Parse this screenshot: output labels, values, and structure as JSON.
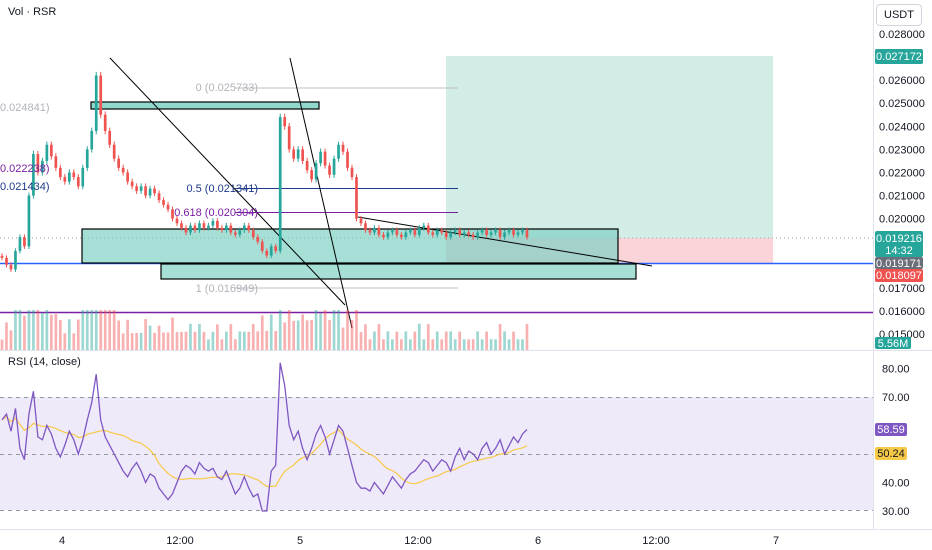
{
  "header": {
    "vol_label": "Vol · RSR",
    "currency": "USDT",
    "rsi_label": "RSI (14, close)"
  },
  "price_axis": {
    "ticks": [
      "0.028000",
      "0.026000",
      "0.025000",
      "0.024000",
      "0.023000",
      "0.022000",
      "0.021000",
      "0.020000",
      "0.017000",
      "0.016000",
      "0.015000"
    ],
    "tick_values": [
      0.028,
      0.026,
      0.025,
      0.024,
      0.023,
      0.022,
      0.021,
      0.02,
      0.017,
      0.016,
      0.015
    ]
  },
  "price_tags": {
    "target": "0.027172",
    "current": "0.019216",
    "countdown": "14:32",
    "level1": "0.019171",
    "stop": "0.018097",
    "volume": "5.56M"
  },
  "rsi_axis": {
    "ticks": [
      "80.00",
      "70.00",
      "40.00",
      "30.00"
    ],
    "tick_values": [
      80,
      70,
      40,
      30
    ],
    "rsi_value": "58.59",
    "ma_value": "50.24"
  },
  "time_axis": {
    "labels": [
      "4",
      "12:00",
      "5",
      "12:00",
      "6",
      "12:00",
      "7"
    ]
  },
  "annotations": {
    "left_level_1": "0.024841)",
    "left_level_2": "0.022238)",
    "left_level_3": "0.021434)",
    "fib_0": "0 (0.025733)",
    "fib_05": "0.5 (0.021341)",
    "fib_0618": "0.618 (0.020304)",
    "fib_1": "1 (0.016949)"
  },
  "colors": {
    "up": "#26a69a",
    "down": "#ef5350",
    "zone_fill": "#7fd1c4",
    "profit_fill": "#d2ede6",
    "loss_fill": "#fad4d8",
    "blue_line": "#2962ff",
    "purple_line": "#7b1fa2",
    "rsi_line": "#7e57c2",
    "rsi_ma": "#f7c948",
    "rsi_band": "#efeafa"
  },
  "chart_data": {
    "type": "candlestick",
    "symbol": "RSR",
    "quote": "USDT",
    "y_range": [
      0.0145,
      0.0285
    ],
    "close_path": [
      0.0183,
      0.018,
      0.0178,
      0.0186,
      0.0192,
      0.0188,
      0.021,
      0.0228,
      0.022,
      0.0225,
      0.0232,
      0.0227,
      0.0222,
      0.0218,
      0.0216,
      0.022,
      0.0218,
      0.0214,
      0.0222,
      0.023,
      0.0238,
      0.0262,
      0.0245,
      0.0238,
      0.0232,
      0.0226,
      0.0222,
      0.022,
      0.0216,
      0.0214,
      0.0212,
      0.0214,
      0.021,
      0.0213,
      0.0211,
      0.0208,
      0.0206,
      0.0204,
      0.02,
      0.0198,
      0.0196,
      0.0194,
      0.0197,
      0.0195,
      0.0198,
      0.0196,
      0.0197,
      0.0199,
      0.0196,
      0.0195,
      0.0197,
      0.0194,
      0.0193,
      0.0195,
      0.0197,
      0.0195,
      0.0192,
      0.019,
      0.0186,
      0.0184,
      0.0188,
      0.0186,
      0.0244,
      0.024,
      0.023,
      0.0226,
      0.023,
      0.0225,
      0.0221,
      0.0217,
      0.0224,
      0.0229,
      0.0223,
      0.0219,
      0.0226,
      0.0232,
      0.0229,
      0.0222,
      0.0218,
      0.02,
      0.0198,
      0.0195,
      0.0194,
      0.0196,
      0.0193,
      0.0192,
      0.0194,
      0.0195,
      0.0193,
      0.0192,
      0.0194,
      0.0195,
      0.0193,
      0.0196,
      0.0197,
      0.0194,
      0.0193,
      0.0195,
      0.0194,
      0.0192,
      0.0194,
      0.0195,
      0.0193,
      0.0194,
      0.0193,
      0.0192,
      0.0194,
      0.0195,
      0.0193,
      0.0194,
      0.0195,
      0.0192,
      0.0194,
      0.0195,
      0.0193,
      0.0194,
      0.0195,
      0.0192
    ],
    "levels": {
      "target": 0.027172,
      "entry": 0.019216,
      "support": 0.019171,
      "stop": 0.018097,
      "fib_0": 0.025733,
      "fib_05": 0.021341,
      "fib_0618": 0.020304,
      "fib_1": 0.016949,
      "purple_low": 0.0159
    },
    "rsi": {
      "name": "RSI (14, close)",
      "range": [
        27,
        84
      ],
      "bands": [
        30,
        70
      ],
      "last": 58.59,
      "ma_last": 50.24,
      "values": [
        62,
        64,
        58,
        66,
        52,
        48,
        64,
        72,
        56,
        55,
        60,
        57,
        52,
        49,
        53,
        58,
        55,
        50,
        55,
        62,
        68,
        78,
        62,
        56,
        53,
        50,
        47,
        44,
        42,
        45,
        47,
        44,
        40,
        43,
        42,
        38,
        36,
        34,
        36,
        40,
        44,
        46,
        45,
        43,
        47,
        45,
        44,
        45,
        42,
        41,
        44,
        40,
        36,
        38,
        42,
        38,
        35,
        36,
        30,
        30,
        44,
        46,
        82,
        74,
        60,
        55,
        58,
        52,
        48,
        52,
        57,
        60,
        56,
        50,
        55,
        60,
        58,
        52,
        46,
        40,
        38,
        38,
        37,
        40,
        38,
        36,
        39,
        42,
        40,
        38,
        41,
        43,
        44,
        46,
        48,
        47,
        44,
        46,
        48,
        47,
        44,
        49,
        52,
        48,
        51,
        50,
        48,
        52,
        54,
        50,
        52,
        55,
        50,
        53,
        56,
        54,
        57,
        58.59
      ]
    }
  }
}
